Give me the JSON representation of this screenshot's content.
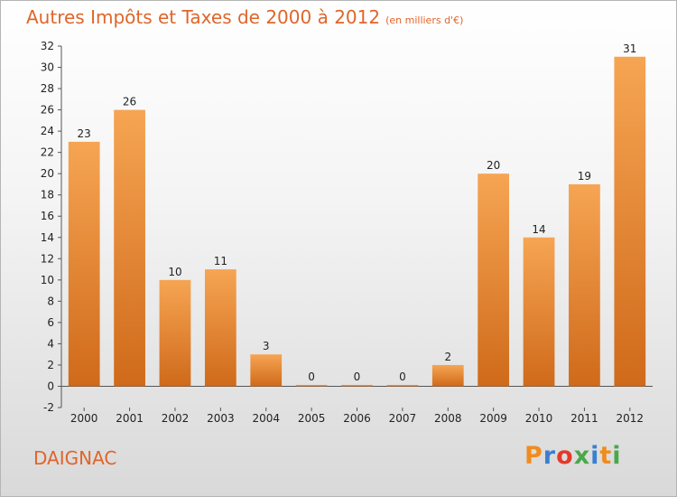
{
  "header": {
    "title": "Autres Impôts et Taxes de 2000 à 2012",
    "subtitle": "(en milliers d'€)"
  },
  "footer": {
    "commune": "DAIGNAC",
    "brand": "Proxiti",
    "brand_letters": [
      {
        "ch": "P",
        "color": "#f08c1e"
      },
      {
        "ch": "r",
        "color": "#3a7fd1"
      },
      {
        "ch": "o",
        "color": "#e33a2c"
      },
      {
        "ch": "x",
        "color": "#4aa84a"
      },
      {
        "ch": "i",
        "color": "#3a7fd1"
      },
      {
        "ch": "t",
        "color": "#f08c1e"
      },
      {
        "ch": "i",
        "color": "#4aa84a"
      }
    ]
  },
  "colors": {
    "bar_light": "#f6a553",
    "bar_dark": "#cf6a1a",
    "accent": "#e0652a"
  },
  "chart_data": {
    "type": "bar",
    "categories": [
      "2000",
      "2001",
      "2002",
      "2003",
      "2004",
      "2005",
      "2006",
      "2007",
      "2008",
      "2009",
      "2010",
      "2011",
      "2012"
    ],
    "values": [
      23,
      26,
      10,
      11,
      3,
      0,
      0,
      0,
      2,
      20,
      14,
      19,
      31
    ],
    "ylim": [
      -2,
      32
    ],
    "yticks": [
      -2,
      0,
      2,
      4,
      6,
      8,
      10,
      12,
      14,
      16,
      18,
      20,
      22,
      24,
      26,
      28,
      30,
      32
    ],
    "grid": false,
    "legend": "none"
  }
}
